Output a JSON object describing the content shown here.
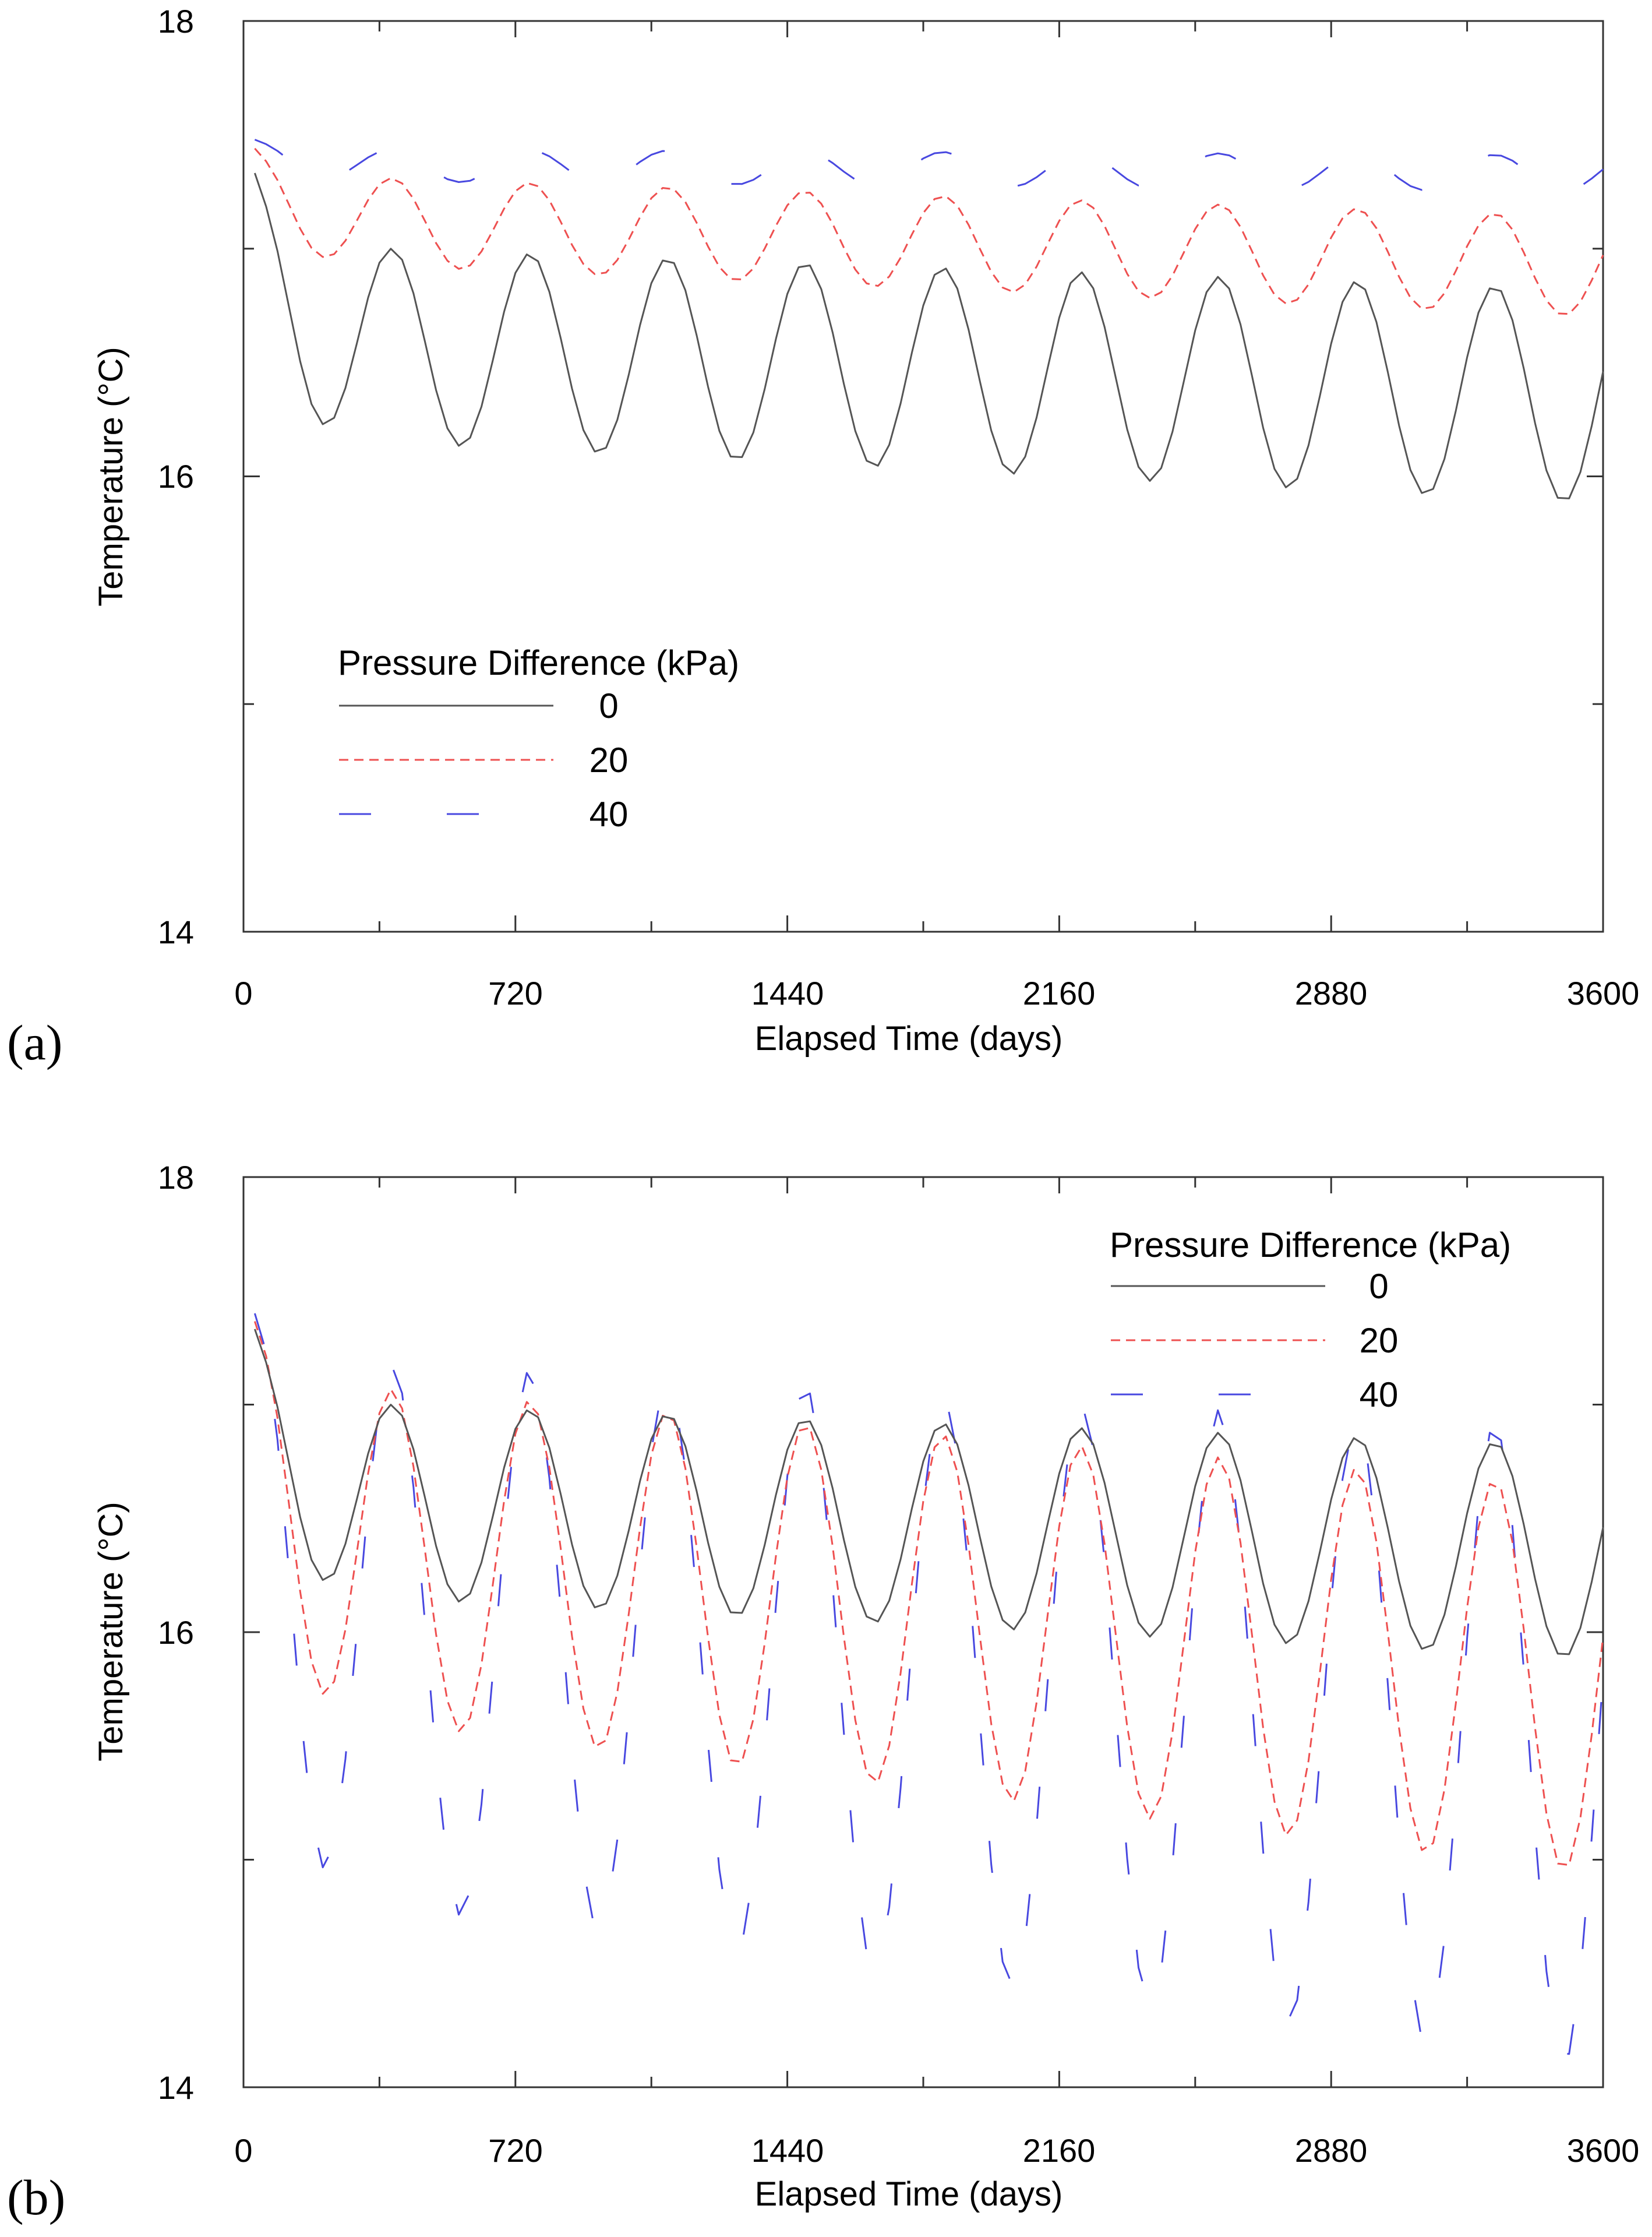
{
  "colors": {
    "s0": "#555555",
    "s20": "#ee5050",
    "s40": "#4848e0",
    "axis": "#333333"
  },
  "chart_data": [
    {
      "type": "line",
      "panel_label": "(a)",
      "xlabel": "Elapsed Time (days)",
      "ylabel": "Temperature (°C)",
      "xlim": [
        0,
        3600
      ],
      "ylim": [
        14,
        18
      ],
      "x_tick_labels": [
        "0",
        "720",
        "1440",
        "2160",
        "2880",
        "3600"
      ],
      "y_tick_labels": [
        "18",
        "16",
        "14"
      ],
      "legend_title": "Pressure Difference (kPa)",
      "legend_position": "lower-left",
      "series": [
        {
          "name": "0",
          "start": 17.5,
          "mean_start": 16.6,
          "mean_end": 16.35,
          "amp_start": 0.42,
          "amp_end": 0.47,
          "period_days": 365,
          "min_phase_day": 210
        },
        {
          "name": "20",
          "start": 17.5,
          "mean_start": 17.14,
          "mean_end": 16.92,
          "amp_start": 0.19,
          "amp_end": 0.22,
          "period_days": 365,
          "min_phase_day": 210
        },
        {
          "name": "40",
          "start": 17.5,
          "mean_start": 17.37,
          "mean_end": 17.33,
          "amp_start": 0.07,
          "amp_end": 0.08,
          "period_days": 365,
          "min_phase_day": 210
        }
      ]
    },
    {
      "type": "line",
      "panel_label": "(b)",
      "xlabel": "Elapsed Time (days)",
      "ylabel": "Temperature (°C)",
      "xlim": [
        0,
        3600
      ],
      "ylim": [
        14,
        18
      ],
      "x_tick_labels": [
        "0",
        "720",
        "1440",
        "2160",
        "2880",
        "3600"
      ],
      "y_tick_labels": [
        "18",
        "16",
        "14"
      ],
      "legend_title": "Pressure Difference (kPa)",
      "legend_position": "top-right",
      "series": [
        {
          "name": "0",
          "start": 17.5,
          "mean_start": 16.6,
          "mean_end": 16.35,
          "amp_start": 0.42,
          "amp_end": 0.47,
          "period_days": 365,
          "min_phase_day": 210
        },
        {
          "name": "20",
          "start": 17.5,
          "mean_start": 16.4,
          "mean_end": 15.78,
          "amp_start": 0.72,
          "amp_end": 0.85,
          "period_days": 365,
          "min_phase_day": 210
        },
        {
          "name": "40",
          "start": 17.5,
          "mean_start": 16.05,
          "mean_end": 15.48,
          "amp_start": 1.17,
          "amp_end": 1.4,
          "period_days": 365,
          "min_phase_day": 210
        }
      ]
    }
  ]
}
